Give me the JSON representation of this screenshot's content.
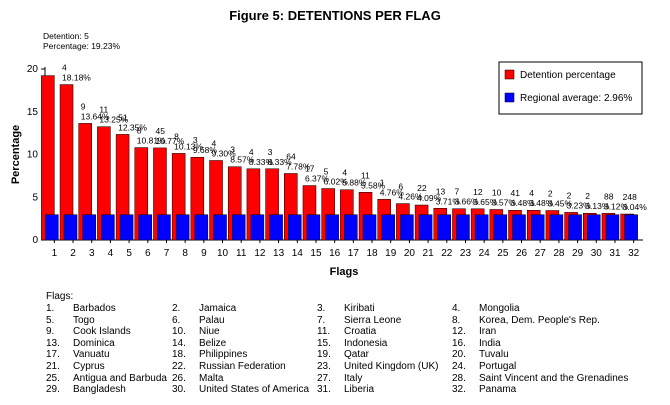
{
  "chart_data": {
    "type": "bar",
    "title": "Figure 5: DETENTIONS PER FLAG",
    "xlabel": "Flags",
    "ylabel": "Percentage",
    "ylim": [
      0,
      20
    ],
    "yticks": [
      0,
      5,
      10,
      15,
      20
    ],
    "legend_position": "top-right",
    "categories": [
      "1",
      "2",
      "3",
      "4",
      "5",
      "6",
      "7",
      "8",
      "9",
      "10",
      "11",
      "12",
      "13",
      "14",
      "15",
      "16",
      "17",
      "18",
      "19",
      "20",
      "21",
      "22",
      "23",
      "24",
      "25",
      "26",
      "27",
      "28",
      "29",
      "30",
      "31",
      "32"
    ],
    "series": [
      {
        "name": "Detention percentage",
        "color": "#ff0000",
        "values": [
          19.23,
          18.18,
          13.64,
          13.25,
          12.35,
          10.81,
          10.77,
          10.13,
          9.68,
          9.3,
          8.57,
          8.33,
          8.33,
          7.78,
          6.37,
          6.02,
          5.88,
          5.58,
          4.76,
          4.26,
          4.09,
          3.71,
          3.66,
          3.65,
          3.57,
          3.48,
          3.48,
          3.45,
          3.23,
          3.13,
          3.12,
          3.04
        ]
      },
      {
        "name": "Regional average: 2.96%",
        "color": "#0000ff",
        "values": [
          2.96,
          2.96,
          2.96,
          2.96,
          2.96,
          2.96,
          2.96,
          2.96,
          2.96,
          2.96,
          2.96,
          2.96,
          2.96,
          2.96,
          2.96,
          2.96,
          2.96,
          2.96,
          2.96,
          2.96,
          2.96,
          2.96,
          2.96,
          2.96,
          2.96,
          2.96,
          2.96,
          2.96,
          2.96,
          2.96,
          2.96,
          2.96
        ]
      }
    ],
    "detention_counts": [
      "5",
      "4",
      "9",
      "11",
      "51",
      "8",
      "45",
      "8",
      "3",
      "4",
      "3",
      "4",
      "3",
      "64",
      "17",
      "5",
      "4",
      "11",
      "1",
      "6",
      "22",
      "13",
      "7",
      "12",
      "10",
      "41",
      "4",
      "2",
      "2",
      "2",
      "88",
      "248"
    ],
    "percent_labels": [
      "19.23%",
      "18.18%",
      "13.64%",
      "13.25%",
      "12.35%",
      "10.81%",
      "10.77%",
      "10.13%",
      "9.68%",
      "9.30%",
      "8.57%",
      "8.33%",
      "8.33%",
      "7.78%",
      "6.37%",
      "6.02%",
      "5.88%",
      "5.58%",
      "4.76%",
      "4.26%",
      "4.09%",
      "3.71%",
      "3.66%",
      "3.65%",
      "3.57%",
      "3.48%",
      "3.48%",
      "3.45%",
      "3.23%",
      "3.13%",
      "3.12%",
      "3.04%"
    ],
    "first_bar_note": {
      "detention_line": "Detention: 5",
      "percentage_line": "Percentage: 19.23%"
    }
  },
  "flags": {
    "heading": "Flags:",
    "items": [
      {
        "num": "1.",
        "name": "Barbados"
      },
      {
        "num": "2.",
        "name": "Jamaica"
      },
      {
        "num": "3.",
        "name": "Kiribati"
      },
      {
        "num": "4.",
        "name": "Mongolia"
      },
      {
        "num": "5.",
        "name": "Togo"
      },
      {
        "num": "6.",
        "name": "Palau"
      },
      {
        "num": "7.",
        "name": "Sierra Leone"
      },
      {
        "num": "8.",
        "name": "Korea, Dem. People's Rep."
      },
      {
        "num": "9.",
        "name": "Cook Islands"
      },
      {
        "num": "10.",
        "name": "Niue"
      },
      {
        "num": "11.",
        "name": "Croatia"
      },
      {
        "num": "12.",
        "name": "Iran"
      },
      {
        "num": "13.",
        "name": "Dominica"
      },
      {
        "num": "14.",
        "name": "Belize"
      },
      {
        "num": "15.",
        "name": "Indonesia"
      },
      {
        "num": "16.",
        "name": "India"
      },
      {
        "num": "17.",
        "name": "Vanuatu"
      },
      {
        "num": "18.",
        "name": "Philippines"
      },
      {
        "num": "19.",
        "name": "Qatar"
      },
      {
        "num": "20.",
        "name": "Tuvalu"
      },
      {
        "num": "21.",
        "name": "Cyprus"
      },
      {
        "num": "22.",
        "name": "Russian Federation"
      },
      {
        "num": "23.",
        "name": "United Kingdom (UK)"
      },
      {
        "num": "24.",
        "name": "Portugal"
      },
      {
        "num": "25.",
        "name": "Antigua and Barbuda"
      },
      {
        "num": "26.",
        "name": "Malta"
      },
      {
        "num": "27.",
        "name": "Italy"
      },
      {
        "num": "28.",
        "name": "Saint Vincent and the Grenadines"
      },
      {
        "num": "29.",
        "name": "Bangladesh"
      },
      {
        "num": "30.",
        "name": "United States of America"
      },
      {
        "num": "31.",
        "name": "Liberia"
      },
      {
        "num": "32.",
        "name": "Panama"
      }
    ]
  }
}
